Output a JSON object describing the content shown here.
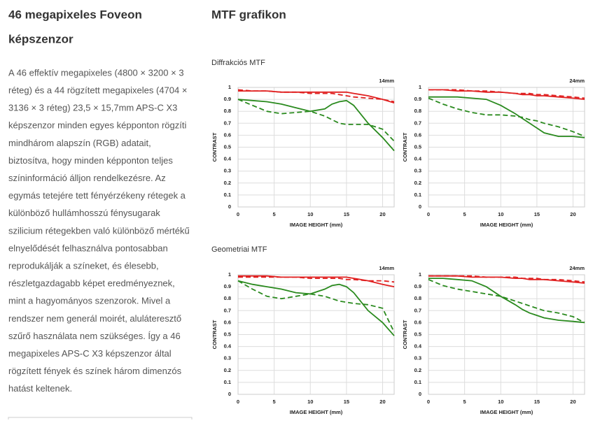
{
  "article": {
    "title": [
      "46 megapixeles Foveon",
      "képszenzor"
    ],
    "lines": [
      "A 46 effektív megapixeles (4800 × 3200 × 3",
      "réteg) és a 44 rögzített megapixeles (4704 ×",
      "3136 × 3 réteg) 23,5 × 15,7mm APS-C X3",
      "képszenzor minden egyes képponton rögzíti",
      "mindhárom alapszín (RGB) adatait,",
      "biztosítva, hogy minden képponton teljes",
      "színinformáció álljon rendelkezésre. Az",
      "egymás tetejére tett fényérzékeny rétegek a",
      "különböző hullámhosszú fénysugarak",
      "szilicium rétegekben való különböző mértékű",
      "elnyelődését felhasználva pontosabban",
      "reprodukálják a színeket, és élesebb,",
      "részletgazdagabb képet eredményeznek,",
      "mint a hagyományos szenzorok. Mivel a",
      "rendszer nem generál moirét, aluláteresztő",
      "szűrő használata nem szükséges. Így a 46",
      "megapixeles APS-C X3 képszenzor által",
      "rögzített fények és színek három dimenzós",
      "hatást keltenek."
    ]
  },
  "section": {
    "title": "MTF grafikon",
    "groups": [
      "Diffrakciós MTF",
      "Geometriai MTF"
    ]
  },
  "chart_data": [
    {
      "type": "line",
      "label": "14mm",
      "xlabel": "IMAGE HEIGHT (mm)",
      "ylabel": "CONTRAST",
      "x": [
        0,
        2,
        4,
        6,
        8,
        10,
        12,
        13,
        14,
        15,
        16,
        18,
        20,
        21.6
      ],
      "xlim": [
        0,
        21.6
      ],
      "ylim": [
        0,
        1
      ],
      "xticks": [
        0,
        5,
        10,
        15,
        20
      ],
      "yticks": [
        0,
        0.1,
        0.2,
        0.3,
        0.4,
        0.5,
        0.6,
        0.7,
        0.8,
        0.9,
        1
      ],
      "grid": true,
      "series": [
        {
          "color": "#e02020",
          "dash": false,
          "values": [
            0.97,
            0.97,
            0.97,
            0.96,
            0.96,
            0.96,
            0.96,
            0.96,
            0.96,
            0.96,
            0.95,
            0.93,
            0.9,
            0.87
          ]
        },
        {
          "color": "#e02020",
          "dash": true,
          "values": [
            0.98,
            0.97,
            0.97,
            0.96,
            0.96,
            0.95,
            0.95,
            0.95,
            0.94,
            0.93,
            0.92,
            0.91,
            0.9,
            0.88
          ]
        },
        {
          "color": "#2a8a1e",
          "dash": false,
          "values": [
            0.9,
            0.89,
            0.88,
            0.86,
            0.83,
            0.8,
            0.82,
            0.86,
            0.88,
            0.89,
            0.85,
            0.7,
            0.58,
            0.47
          ]
        },
        {
          "color": "#2a8a1e",
          "dash": true,
          "values": [
            0.9,
            0.85,
            0.8,
            0.78,
            0.79,
            0.8,
            0.76,
            0.73,
            0.7,
            0.69,
            0.69,
            0.69,
            0.65,
            0.55
          ]
        }
      ]
    },
    {
      "type": "line",
      "label": "24mm",
      "xlabel": "IMAGE HEIGHT (mm)",
      "ylabel": "CONTRAST",
      "x": [
        0,
        2,
        4,
        6,
        8,
        10,
        12,
        13,
        14,
        15,
        16,
        18,
        20,
        21.6
      ],
      "xlim": [
        0,
        21.6
      ],
      "ylim": [
        0,
        1
      ],
      "xticks": [
        0,
        5,
        10,
        15,
        20
      ],
      "yticks": [
        0,
        0.1,
        0.2,
        0.3,
        0.4,
        0.5,
        0.6,
        0.7,
        0.8,
        0.9,
        1
      ],
      "grid": true,
      "series": [
        {
          "color": "#e02020",
          "dash": false,
          "values": [
            0.98,
            0.98,
            0.97,
            0.97,
            0.96,
            0.96,
            0.95,
            0.94,
            0.94,
            0.93,
            0.93,
            0.92,
            0.91,
            0.9
          ]
        },
        {
          "color": "#e02020",
          "dash": true,
          "values": [
            0.98,
            0.98,
            0.98,
            0.97,
            0.97,
            0.96,
            0.95,
            0.95,
            0.95,
            0.94,
            0.94,
            0.93,
            0.92,
            0.91
          ]
        },
        {
          "color": "#2a8a1e",
          "dash": false,
          "values": [
            0.92,
            0.92,
            0.92,
            0.91,
            0.9,
            0.85,
            0.78,
            0.74,
            0.7,
            0.66,
            0.62,
            0.59,
            0.59,
            0.58
          ]
        },
        {
          "color": "#2a8a1e",
          "dash": true,
          "values": [
            0.91,
            0.86,
            0.82,
            0.79,
            0.77,
            0.77,
            0.76,
            0.75,
            0.73,
            0.72,
            0.7,
            0.67,
            0.63,
            0.59
          ]
        }
      ]
    },
    {
      "type": "line",
      "label": "14mm",
      "xlabel": "IMAGE HEIGHT (mm)",
      "ylabel": "CONTRAST",
      "x": [
        0,
        2,
        4,
        6,
        8,
        10,
        12,
        13,
        14,
        15,
        16,
        18,
        20,
        21.6
      ],
      "xlim": [
        0,
        21.6
      ],
      "ylim": [
        0,
        1
      ],
      "xticks": [
        0,
        5,
        10,
        15,
        20
      ],
      "yticks": [
        0,
        0.1,
        0.2,
        0.3,
        0.4,
        0.5,
        0.6,
        0.7,
        0.8,
        0.9,
        1
      ],
      "grid": true,
      "series": [
        {
          "color": "#e02020",
          "dash": false,
          "values": [
            0.99,
            0.99,
            0.99,
            0.98,
            0.98,
            0.98,
            0.98,
            0.98,
            0.98,
            0.98,
            0.97,
            0.95,
            0.92,
            0.9
          ]
        },
        {
          "color": "#e02020",
          "dash": true,
          "values": [
            0.98,
            0.98,
            0.98,
            0.98,
            0.98,
            0.97,
            0.97,
            0.97,
            0.97,
            0.96,
            0.96,
            0.95,
            0.95,
            0.94
          ]
        },
        {
          "color": "#2a8a1e",
          "dash": false,
          "values": [
            0.95,
            0.92,
            0.9,
            0.88,
            0.85,
            0.84,
            0.88,
            0.91,
            0.92,
            0.9,
            0.85,
            0.7,
            0.6,
            0.49
          ]
        },
        {
          "color": "#2a8a1e",
          "dash": true,
          "values": [
            0.95,
            0.88,
            0.82,
            0.8,
            0.82,
            0.84,
            0.82,
            0.8,
            0.78,
            0.77,
            0.76,
            0.75,
            0.72,
            0.52
          ]
        }
      ]
    },
    {
      "type": "line",
      "label": "24mm",
      "xlabel": "IMAGE HEIGHT (mm)",
      "ylabel": "CONTRAST",
      "x": [
        0,
        2,
        4,
        6,
        8,
        10,
        12,
        13,
        14,
        15,
        16,
        18,
        20,
        21.6
      ],
      "xlim": [
        0,
        21.6
      ],
      "ylim": [
        0,
        1
      ],
      "xticks": [
        0,
        5,
        10,
        15,
        20
      ],
      "yticks": [
        0,
        0.1,
        0.2,
        0.3,
        0.4,
        0.5,
        0.6,
        0.7,
        0.8,
        0.9,
        1
      ],
      "grid": true,
      "series": [
        {
          "color": "#e02020",
          "dash": false,
          "values": [
            0.99,
            0.99,
            0.99,
            0.98,
            0.98,
            0.98,
            0.97,
            0.97,
            0.96,
            0.96,
            0.96,
            0.95,
            0.94,
            0.93
          ]
        },
        {
          "color": "#e02020",
          "dash": true,
          "values": [
            0.99,
            0.99,
            0.99,
            0.99,
            0.98,
            0.98,
            0.98,
            0.97,
            0.97,
            0.97,
            0.96,
            0.96,
            0.95,
            0.94
          ]
        },
        {
          "color": "#2a8a1e",
          "dash": false,
          "values": [
            0.97,
            0.97,
            0.96,
            0.95,
            0.9,
            0.82,
            0.75,
            0.71,
            0.68,
            0.66,
            0.64,
            0.62,
            0.61,
            0.6
          ]
        },
        {
          "color": "#2a8a1e",
          "dash": true,
          "values": [
            0.96,
            0.91,
            0.88,
            0.86,
            0.84,
            0.82,
            0.78,
            0.76,
            0.74,
            0.72,
            0.7,
            0.68,
            0.65,
            0.6
          ]
        }
      ]
    }
  ]
}
